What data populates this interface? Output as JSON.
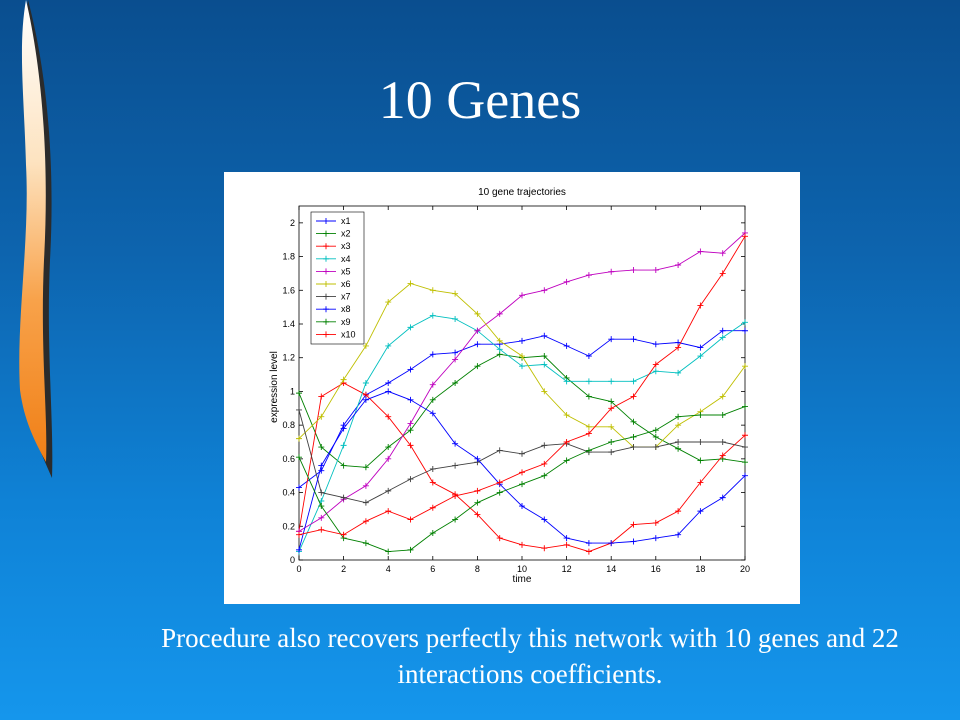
{
  "slide": {
    "title": "10 Genes",
    "caption": "Procedure also recovers perfectly this network with 10 genes and 22 interactions coefficients."
  },
  "colors": {
    "background_top": "#0a4e8f",
    "background_bottom": "#1596ec",
    "text": "#ffffff"
  },
  "chart_data": {
    "type": "line",
    "title": "10 gene trajectories",
    "xlabel": "time",
    "ylabel": "expression level",
    "xlim": [
      0,
      20
    ],
    "ylim": [
      0,
      2.1
    ],
    "xticks": [
      0,
      2,
      4,
      6,
      8,
      10,
      12,
      14,
      16,
      18,
      20
    ],
    "yticks": [
      0,
      0.2,
      0.4,
      0.6,
      0.8,
      1,
      1.2,
      1.4,
      1.6,
      1.8,
      2
    ],
    "grid": false,
    "legend_position": "top-left",
    "marker": "+",
    "x": [
      0,
      1,
      2,
      3,
      4,
      5,
      6,
      7,
      8,
      9,
      10,
      11,
      12,
      13,
      14,
      15,
      16,
      17,
      18,
      19,
      20
    ],
    "series": [
      {
        "name": "x1",
        "color": "#0000ff",
        "values": [
          0.43,
          0.53,
          0.8,
          0.98,
          1.05,
          1.13,
          1.22,
          1.23,
          1.28,
          1.28,
          1.3,
          1.33,
          1.27,
          1.21,
          1.31,
          1.31,
          1.28,
          1.29,
          1.26,
          1.36,
          1.36
        ]
      },
      {
        "name": "x2",
        "color": "#008000",
        "values": [
          0.99,
          0.67,
          0.56,
          0.55,
          0.67,
          0.77,
          0.95,
          1.05,
          1.15,
          1.22,
          1.2,
          1.21,
          1.08,
          0.97,
          0.94,
          0.82,
          0.73,
          0.66,
          0.59,
          0.6,
          0.58
        ]
      },
      {
        "name": "x3",
        "color": "#ff0000",
        "values": [
          0.17,
          0.97,
          1.05,
          0.98,
          0.85,
          0.68,
          0.46,
          0.39,
          0.27,
          0.13,
          0.09,
          0.07,
          0.09,
          0.05,
          0.1,
          0.21,
          0.22,
          0.29,
          0.46,
          0.62,
          0.74
        ]
      },
      {
        "name": "x4",
        "color": "#00bfbf",
        "values": [
          0.05,
          0.35,
          0.68,
          1.05,
          1.27,
          1.38,
          1.45,
          1.43,
          1.36,
          1.25,
          1.15,
          1.16,
          1.06,
          1.06,
          1.06,
          1.06,
          1.12,
          1.11,
          1.21,
          1.32,
          1.41
        ]
      },
      {
        "name": "x5",
        "color": "#bf00bf",
        "values": [
          0.17,
          0.25,
          0.36,
          0.44,
          0.6,
          0.81,
          1.04,
          1.19,
          1.36,
          1.46,
          1.57,
          1.6,
          1.65,
          1.69,
          1.71,
          1.72,
          1.72,
          1.75,
          1.83,
          1.82,
          1.94
        ]
      },
      {
        "name": "x6",
        "color": "#bfbf00",
        "values": [
          0.72,
          0.85,
          1.07,
          1.27,
          1.53,
          1.64,
          1.6,
          1.58,
          1.46,
          1.3,
          1.21,
          1.0,
          0.86,
          0.79,
          0.79,
          0.67,
          0.67,
          0.8,
          0.88,
          0.97,
          1.15
        ]
      },
      {
        "name": "x7",
        "color": "#404040",
        "values": [
          0.89,
          0.4,
          0.37,
          0.34,
          0.41,
          0.48,
          0.54,
          0.56,
          0.58,
          0.65,
          0.63,
          0.68,
          0.69,
          0.64,
          0.64,
          0.67,
          0.67,
          0.7,
          0.7,
          0.7,
          0.67
        ]
      },
      {
        "name": "x8",
        "color": "#0000ff",
        "values": [
          0.06,
          0.56,
          0.78,
          0.95,
          1.0,
          0.95,
          0.87,
          0.69,
          0.6,
          0.45,
          0.32,
          0.24,
          0.13,
          0.1,
          0.1,
          0.11,
          0.13,
          0.15,
          0.29,
          0.37,
          0.5
        ]
      },
      {
        "name": "x9",
        "color": "#008000",
        "values": [
          0.61,
          0.32,
          0.13,
          0.1,
          0.05,
          0.06,
          0.16,
          0.24,
          0.34,
          0.4,
          0.45,
          0.5,
          0.59,
          0.65,
          0.7,
          0.73,
          0.77,
          0.85,
          0.86,
          0.86,
          0.91
        ]
      },
      {
        "name": "x10",
        "color": "#ff0000",
        "values": [
          0.15,
          0.18,
          0.15,
          0.23,
          0.29,
          0.24,
          0.31,
          0.38,
          0.41,
          0.46,
          0.52,
          0.57,
          0.7,
          0.75,
          0.9,
          0.97,
          1.16,
          1.26,
          1.51,
          1.7,
          1.92
        ]
      }
    ]
  }
}
